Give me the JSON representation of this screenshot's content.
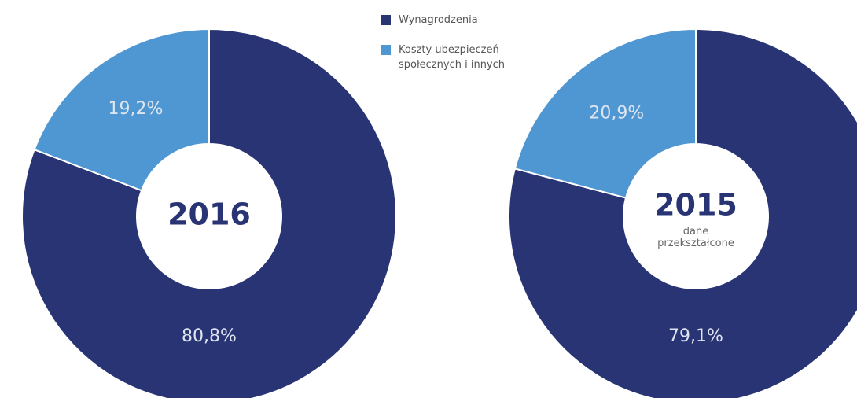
{
  "chart_data": [
    {
      "type": "pie",
      "title": "2016",
      "categories": [
        "Wynagrodzenia",
        "Koszty ubezpieczeń społecznych i innych"
      ],
      "values": [
        80.8,
        19.2
      ],
      "value_labels": [
        "80,8%",
        "19,2%"
      ],
      "colors": [
        "#283474",
        "#4f97d3"
      ]
    },
    {
      "type": "pie",
      "title": "2015",
      "subtitle": "dane przekształcone",
      "categories": [
        "Wynagrodzenia",
        "Koszty ubezpieczeń społecznych i innych"
      ],
      "values": [
        79.1,
        20.9
      ],
      "value_labels": [
        "79,1%",
        "20,9%"
      ],
      "colors": [
        "#283474",
        "#4f97d3"
      ]
    }
  ]
}
